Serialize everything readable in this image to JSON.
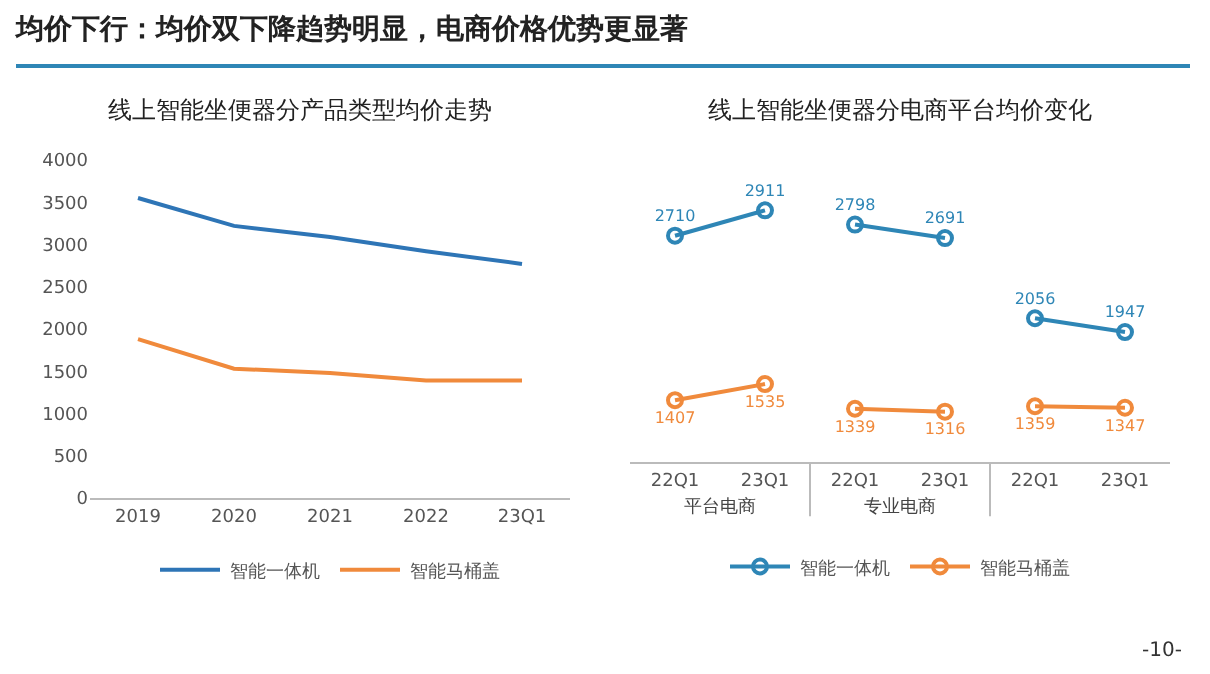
{
  "chart_data": [
    {
      "type": "line",
      "title": "线上智能坐便器分产品类型均价走势",
      "annotations": [
        "均价下行：均价双下降趋势明显，电商价格优势更显著",
        "-10-"
      ],
      "categories": [
        "2019",
        "2020",
        "2021",
        "2022",
        "23Q1"
      ],
      "series": [
        {
          "name": "智能一体机",
          "color": "#2e75b6",
          "values": [
            3550,
            3220,
            3090,
            2920,
            2770
          ]
        },
        {
          "name": "智能马桶盖",
          "color": "#f08a3c",
          "values": [
            1880,
            1530,
            1480,
            1390,
            1390
          ]
        }
      ],
      "ylim": [
        0,
        4000
      ],
      "yticks": [
        0,
        500,
        1000,
        1500,
        2000,
        2500,
        3000,
        3500,
        4000
      ],
      "grid": false,
      "legend": "bottom",
      "marker": "none",
      "line_style": "solid"
    },
    {
      "type": "line",
      "title": "线上智能坐便器分电商平台均价变化",
      "annotations": [
        "平台电商",
        "专业电商"
      ],
      "categories": [
        "22Q1",
        "23Q1",
        "22Q1",
        "23Q1",
        "22Q1",
        "23Q1"
      ],
      "series": [
        {
          "name": "智能一体机",
          "color": "#2e86b6",
          "values": [
            2710,
            2911,
            null,
            null,
            null,
            null
          ]
        },
        {
          "name": "智能马桶盖",
          "color": "#f08a3c",
          "values": [
            1407,
            1535,
            null,
            null,
            null,
            null
          ]
        },
        {
          "color": "#2e86b6",
          "values": [
            null,
            null,
            2798,
            2691,
            null,
            null
          ]
        },
        {
          "color": "#f08a3c",
          "values": [
            null,
            null,
            1339,
            1316,
            null,
            null
          ]
        },
        {
          "color": "#2e86b6",
          "values": [
            null,
            null,
            null,
            null,
            2056,
            1947
          ]
        },
        {
          "color": "#f08a3c",
          "values": [
            null,
            null,
            null,
            null,
            1359,
            1347
          ]
        }
      ],
      "data_labels": true,
      "tick_labels": "x",
      "grid": false,
      "legend": "bottom",
      "marker": "circle",
      "line_style": "solid"
    }
  ]
}
